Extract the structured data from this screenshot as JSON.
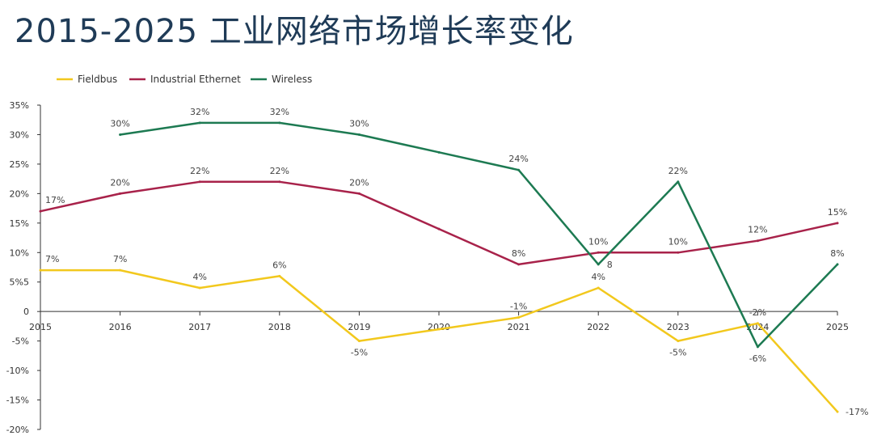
{
  "title": "2015-2025 工业网络市场增长率变化",
  "colors": {
    "fieldbus": "#f2c81d",
    "industrial_ethernet": "#a8224a",
    "wireless": "#1d7a52",
    "axis": "#333333"
  },
  "chart_data": {
    "type": "line",
    "title": "2015-2025 工业网络市场增长率变化",
    "xlabel": "",
    "ylabel": "",
    "x": [
      2015,
      2016,
      2017,
      2018,
      2019,
      2020,
      2021,
      2022,
      2023,
      2024,
      2025
    ],
    "x_tick_labels": [
      "2015",
      "2016",
      "2017",
      "2018",
      "2019",
      "2020",
      "2021",
      "2022",
      "2023",
      "2024",
      "2025"
    ],
    "ylim": [
      -20,
      35
    ],
    "y_ticks": [
      35,
      30,
      25,
      20,
      15,
      10,
      5,
      0,
      -5,
      -10,
      -15,
      -20
    ],
    "y_tick_labels": [
      "35%",
      "30%",
      "25%",
      "20%",
      "15%",
      "10%",
      "5%5",
      "0",
      "-5%",
      "-10%",
      "-15%",
      "-20%"
    ],
    "grid": false,
    "legend_position": "top-left",
    "series": [
      {
        "name": "Fieldbus",
        "color_key": "fieldbus",
        "values": [
          7,
          7,
          4,
          6,
          -5,
          -3,
          -1,
          4,
          -5,
          -2,
          -17
        ],
        "labels": [
          "7%",
          "7%",
          "4%",
          "6%",
          "-5%",
          null,
          "-1%",
          "4%",
          "-5%",
          "-2%",
          "-17%"
        ]
      },
      {
        "name": "Industrial Ethernet",
        "color_key": "industrial_ethernet",
        "values": [
          17,
          20,
          22,
          22,
          20,
          14,
          8,
          10,
          10,
          12,
          15
        ],
        "labels": [
          "17%",
          "20%",
          "22%",
          "22%",
          "20%",
          null,
          "8%",
          "10%",
          "10%",
          "12%",
          "15%"
        ]
      },
      {
        "name": "Wireless",
        "color_key": "wireless",
        "values": [
          null,
          30,
          32,
          32,
          30,
          27,
          24,
          8,
          22,
          -6,
          8
        ],
        "labels": [
          null,
          "30%",
          "32%",
          "32%",
          "30%",
          null,
          "24%",
          "8",
          "22%",
          "-6%",
          "8%"
        ]
      }
    ]
  }
}
